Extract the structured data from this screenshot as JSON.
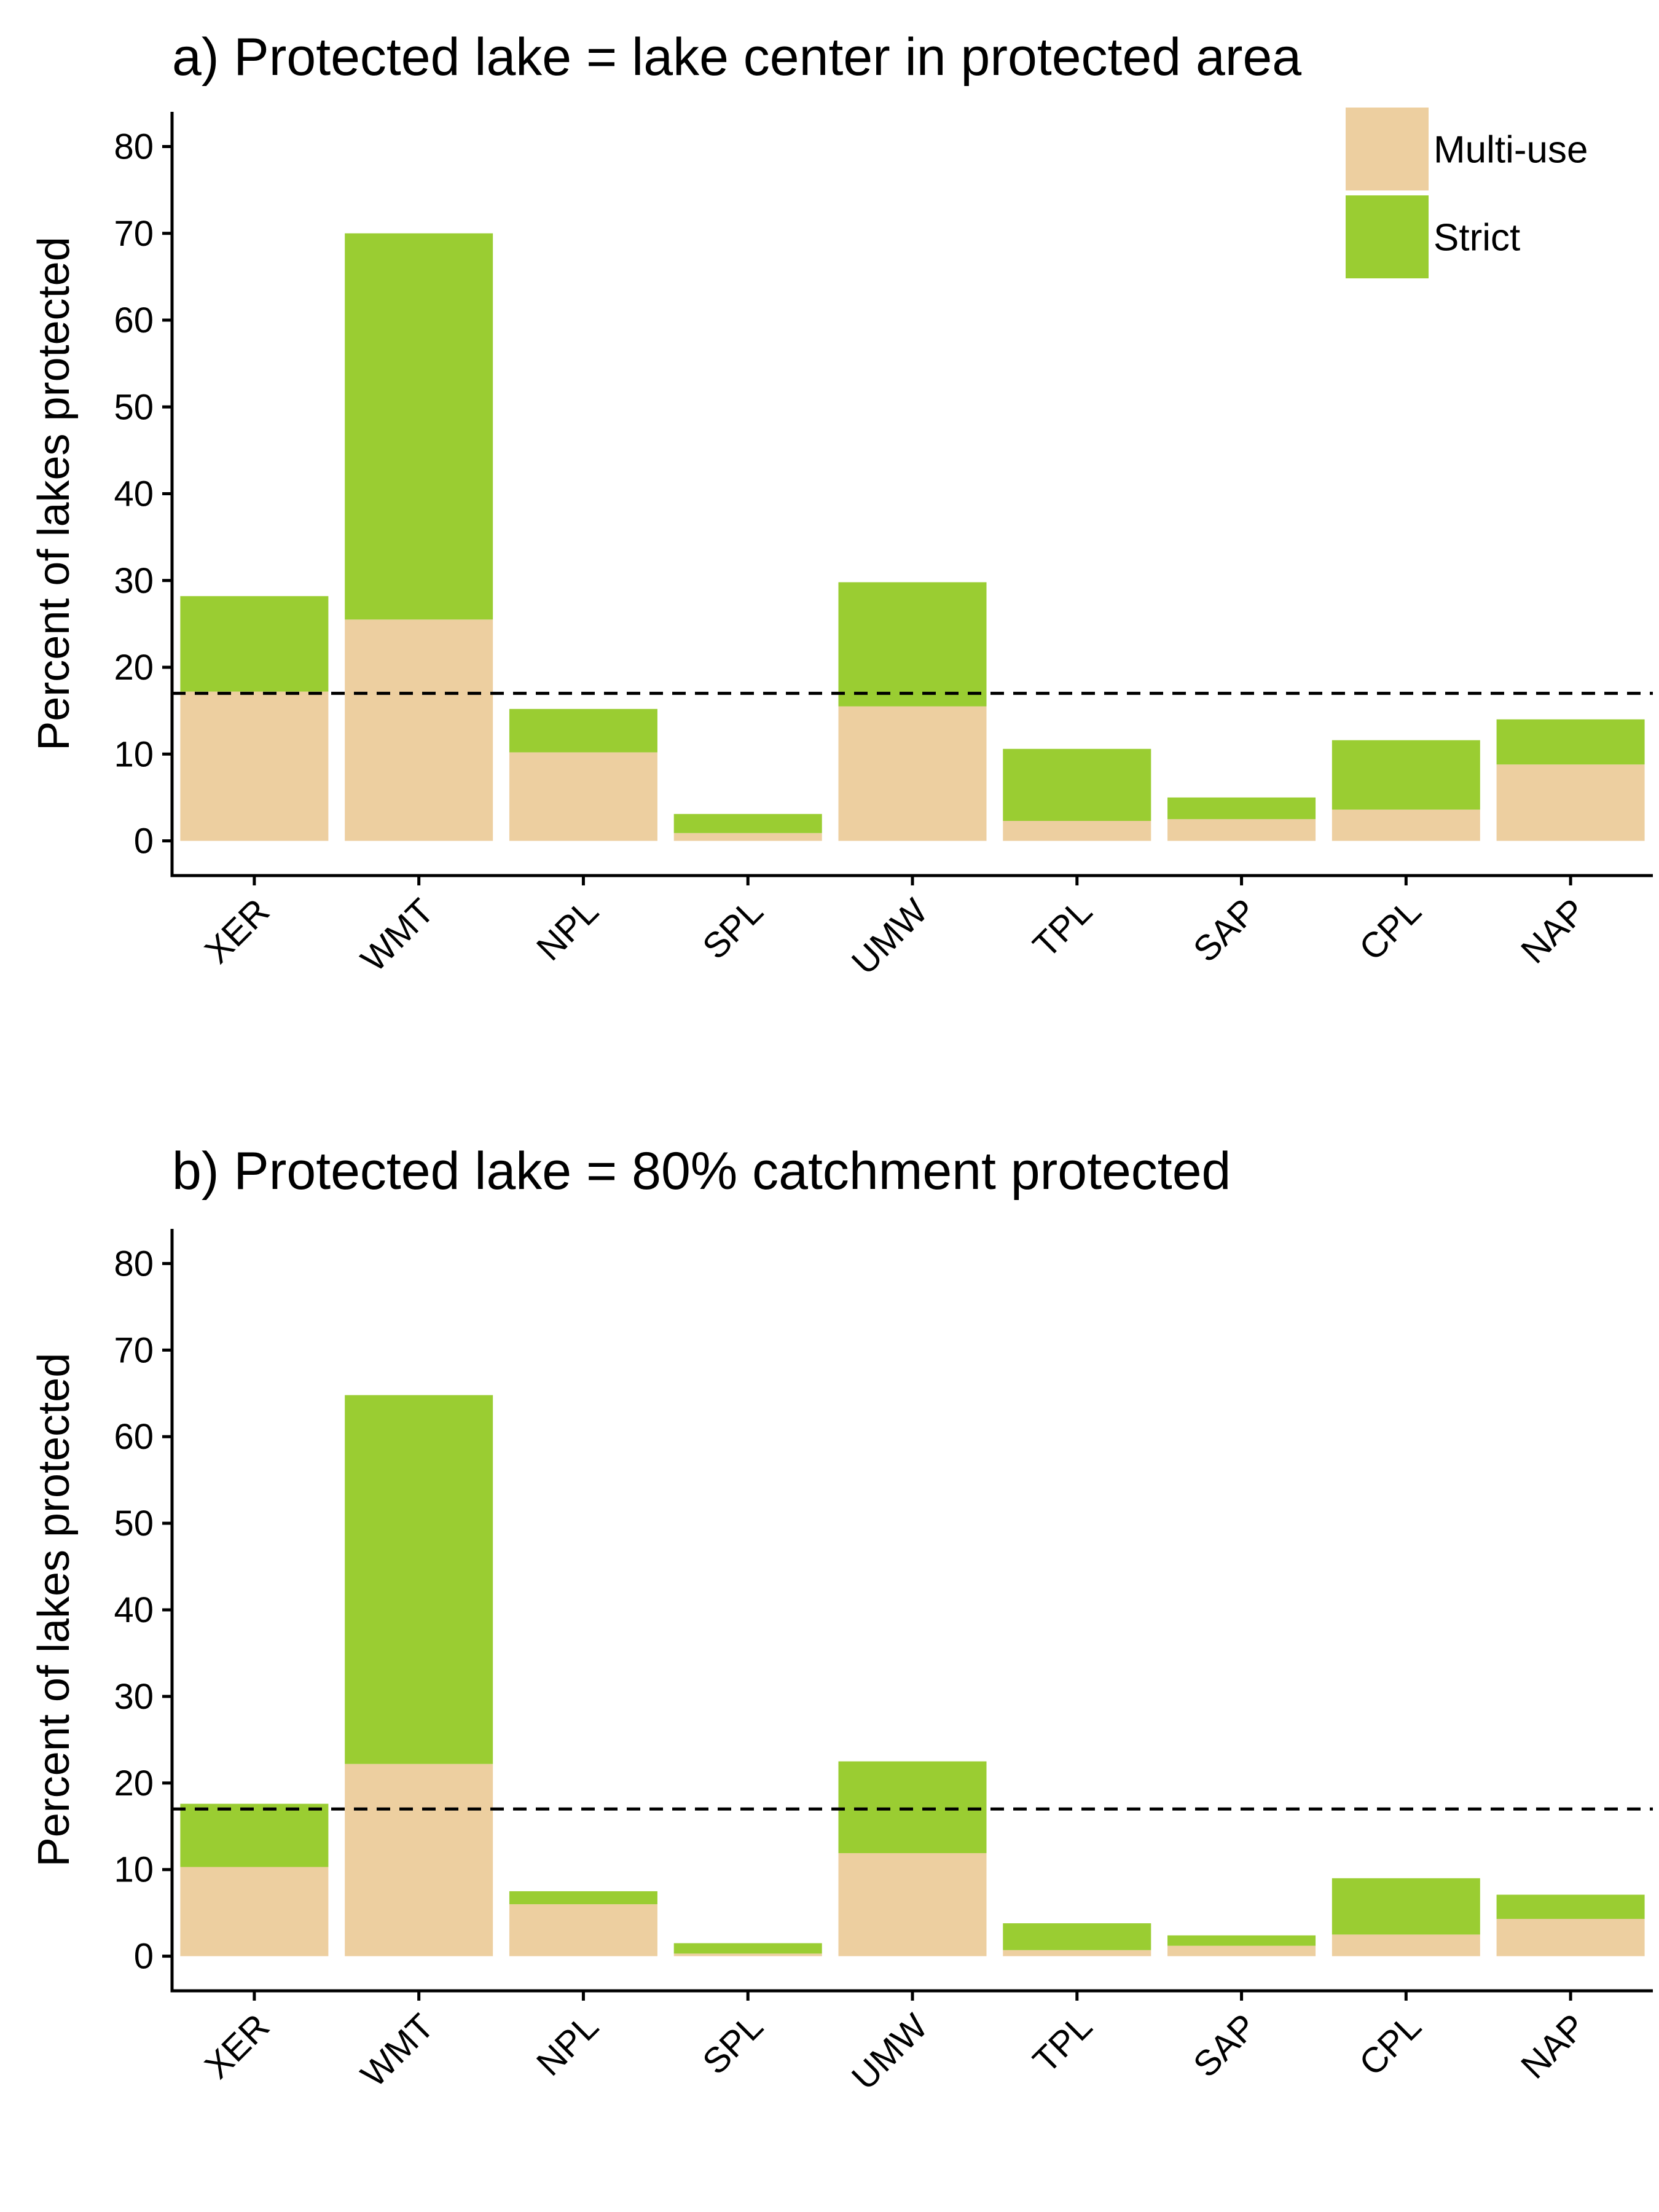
{
  "colors": {
    "multi_use": "#EDCFA0",
    "strict": "#9ACD32",
    "axis": "#000000",
    "reference_line": "#000000"
  },
  "chart_data": [
    {
      "type": "bar",
      "stacked": true,
      "title": "a) Protected lake = lake center in protected area",
      "xlabel": "",
      "ylabel": "Percent of lakes protected",
      "ylim": [
        -4,
        84
      ],
      "yticks": [
        0,
        10,
        20,
        30,
        40,
        50,
        60,
        70,
        80
      ],
      "categories": [
        "XER",
        "WMT",
        "NPL",
        "SPL",
        "UMW",
        "TPL",
        "SAP",
        "CPL",
        "NAP"
      ],
      "series": [
        {
          "name": "Multi-use",
          "color_key": "multi_use",
          "values": [
            17.2,
            25.5,
            10.2,
            0.9,
            15.5,
            2.3,
            2.5,
            3.6,
            8.8
          ]
        },
        {
          "name": "Strict",
          "color_key": "strict",
          "values": [
            11.0,
            44.5,
            5.0,
            2.2,
            14.3,
            8.3,
            2.5,
            8.0,
            5.2
          ]
        }
      ],
      "reference_line": {
        "y": 17,
        "style": "dashed"
      },
      "legend": {
        "position": "top-right",
        "entries": [
          "Multi-use",
          "Strict"
        ]
      },
      "grid": false
    },
    {
      "type": "bar",
      "stacked": true,
      "title": "b) Protected lake = 80% catchment protected",
      "xlabel": "",
      "ylabel": "Percent of lakes protected",
      "ylim": [
        -4,
        84
      ],
      "yticks": [
        0,
        10,
        20,
        30,
        40,
        50,
        60,
        70,
        80
      ],
      "categories": [
        "XER",
        "WMT",
        "NPL",
        "SPL",
        "UMW",
        "TPL",
        "SAP",
        "CPL",
        "NAP"
      ],
      "series": [
        {
          "name": "Multi-use",
          "color_key": "multi_use",
          "values": [
            10.3,
            22.2,
            6.0,
            0.3,
            11.9,
            0.7,
            1.2,
            2.5,
            4.3
          ]
        },
        {
          "name": "Strict",
          "color_key": "strict",
          "values": [
            7.3,
            42.6,
            1.5,
            1.2,
            10.6,
            3.1,
            1.2,
            6.5,
            2.8
          ]
        }
      ],
      "reference_line": {
        "y": 17,
        "style": "dashed"
      },
      "grid": false
    }
  ]
}
